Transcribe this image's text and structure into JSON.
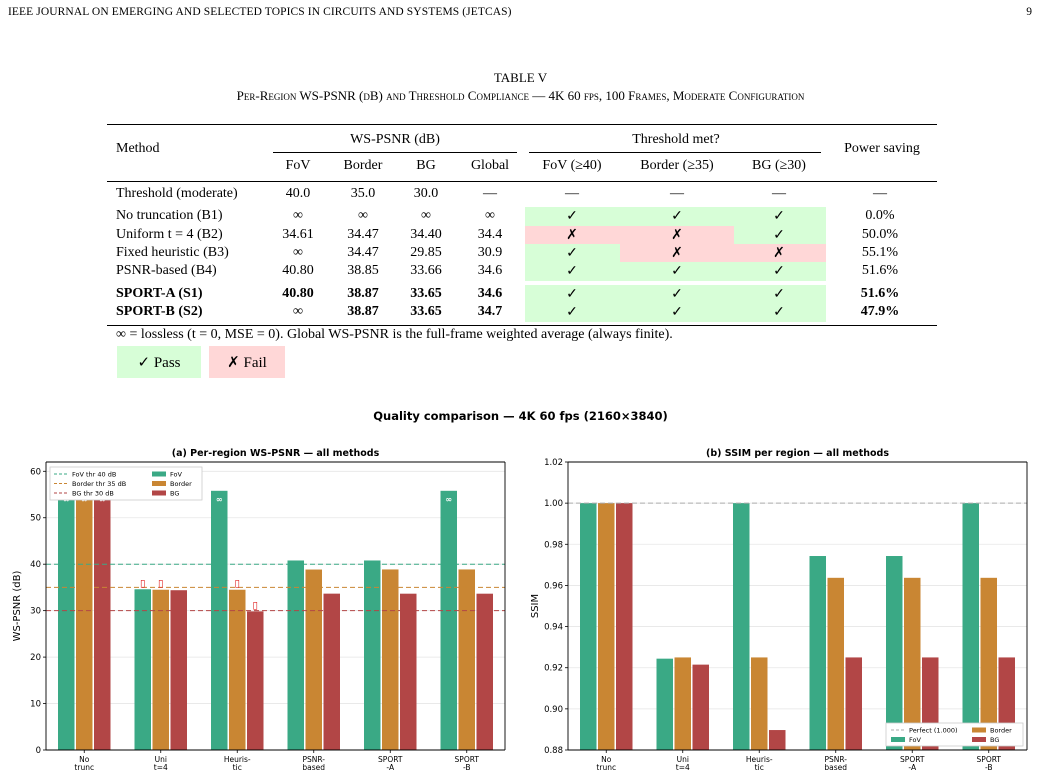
{
  "page_header": {
    "journal": "IEEE JOURNAL ON EMERGING AND SELECTED TOPICS IN CIRCUITS AND SYSTEMS (JETCAS)",
    "page_number": "9"
  },
  "table": {
    "number": "TABLE V",
    "caption": "Per-Region WS-PSNR (dB) and Threshold Compliance — 4K 60 fps, 100 Frames, Moderate Configuration",
    "group_headers": {
      "method": "Method",
      "wspsnr": "WS-PSNR (dB)",
      "threshold": "Threshold met?",
      "power": "Power saving"
    },
    "sub_headers": [
      "FoV",
      "Border",
      "BG",
      "Global",
      "FoV (≥40)",
      "Border (≥35)",
      "BG (≥30)"
    ],
    "rows": [
      {
        "method": "Threshold (moderate)",
        "fov": "40.0",
        "border": "35.0",
        "bg": "30.0",
        "global": "—",
        "t_fov": "—",
        "t_border": "—",
        "t_bg": "—",
        "power": "—"
      },
      {
        "method": "No truncation (B1)",
        "fov": "∞",
        "border": "∞",
        "bg": "∞",
        "global": "∞",
        "t_fov": "✓",
        "t_border": "✓",
        "t_bg": "✓",
        "power": "0.0%"
      },
      {
        "method": "Uniform t = 4 (B2)",
        "fov": "34.61",
        "border": "34.47",
        "bg": "34.40",
        "global": "34.4",
        "t_fov": "✗",
        "t_border": "✗",
        "t_bg": "✓",
        "power": "50.0%"
      },
      {
        "method": "Fixed heuristic (B3)",
        "fov": "∞",
        "border": "34.47",
        "bg": "29.85",
        "global": "30.9",
        "t_fov": "✓",
        "t_border": "✗",
        "t_bg": "✗",
        "power": "55.1%"
      },
      {
        "method": "PSNR-based (B4)",
        "fov": "40.80",
        "border": "38.85",
        "bg": "33.66",
        "global": "34.6",
        "t_fov": "✓",
        "t_border": "✓",
        "t_bg": "✓",
        "power": "51.6%"
      },
      {
        "method": "SPORT-A (S1)",
        "fov": "40.80",
        "border": "38.87",
        "bg": "33.65",
        "global": "34.6",
        "t_fov": "✓",
        "t_border": "✓",
        "t_bg": "✓",
        "power": "51.6%"
      },
      {
        "method": "SPORT-B (S2)",
        "fov": "∞",
        "border": "38.87",
        "bg": "33.65",
        "global": "34.7",
        "t_fov": "✓",
        "t_border": "✓",
        "t_bg": "✓",
        "power": "47.9%"
      }
    ],
    "footnote": "∞ = lossless (t = 0, MSE = 0). Global WS-PSNR is the full-frame weighted average (always finite).",
    "legend_pass": "✓ Pass",
    "legend_fail": "✗ Fail",
    "colors": {
      "pass_bg": "#d7fed7",
      "fail_bg": "#ffd7d7"
    }
  },
  "figure": {
    "suptitle": "Quality comparison — 4K 60 fps (2160×3840)",
    "colors": {
      "fov": "#3aa985",
      "border": "#c98633",
      "bg": "#b24646"
    }
  },
  "chart_data": [
    {
      "type": "bar",
      "title": "(a) Per-region WS-PSNR — all methods",
      "xlabel": "",
      "ylabel": "WS-PSNR (dB)",
      "ylim": [
        0,
        62
      ],
      "yticks": [
        0,
        10,
        20,
        30,
        40,
        50,
        60
      ],
      "categories": [
        "No\ntrunc",
        "Uni\nt=4",
        "Heuris-\ntic",
        "PSNR-\nbased",
        "SPORT\n-A",
        "SPORT\n-B"
      ],
      "series": [
        {
          "name": "FoV",
          "values": [
            55.8,
            34.6,
            55.8,
            40.8,
            40.8,
            55.8
          ],
          "labels": [
            "∞",
            "",
            "∞",
            "",
            "",
            "∞"
          ]
        },
        {
          "name": "Border",
          "values": [
            55.8,
            34.5,
            34.5,
            38.85,
            38.87,
            38.87
          ],
          "labels": [
            "∞",
            "",
            "",
            "",
            "",
            ""
          ]
        },
        {
          "name": "BG",
          "values": [
            55.8,
            34.4,
            29.85,
            33.66,
            33.65,
            33.65
          ],
          "labels": [
            "∞",
            "",
            "",
            "",
            "",
            ""
          ]
        }
      ],
      "thresholds": [
        {
          "name": "FoV thr 40 dB",
          "value": 40,
          "color": "#3aa985"
        },
        {
          "name": "Border thr 35 dB",
          "value": 35,
          "color": "#c98633"
        },
        {
          "name": "BG thr 30 dB",
          "value": 30,
          "color": "#b24646"
        }
      ],
      "fail_markers": [
        {
          "category": 1,
          "series": 0,
          "text": "▯"
        },
        {
          "category": 1,
          "series": 1,
          "text": "▯"
        },
        {
          "category": 2,
          "series": 1,
          "text": "▯"
        },
        {
          "category": 2,
          "series": 2,
          "text": "▯"
        }
      ],
      "legend": "top-left",
      "grid": true
    },
    {
      "type": "bar",
      "title": "(b) SSIM per region — all methods",
      "xlabel": "",
      "ylabel": "SSIM",
      "ylim": [
        0.88,
        1.02
      ],
      "yticks": [
        0.88,
        0.9,
        0.92,
        0.94,
        0.96,
        0.98,
        1.0,
        1.02
      ],
      "categories": [
        "No\ntrunc",
        "Uni\nt=4",
        "Heuris-\ntic",
        "PSNR-\nbased",
        "SPORT\n-A",
        "SPORT\n-B"
      ],
      "series": [
        {
          "name": "FoV",
          "values": [
            1.0,
            0.9244,
            1.0,
            0.9743,
            0.9743,
            1.0
          ]
        },
        {
          "name": "Border",
          "values": [
            1.0,
            0.925,
            0.925,
            0.9637,
            0.9637,
            0.9637
          ]
        },
        {
          "name": "BG",
          "values": [
            1.0,
            0.9215,
            0.8897,
            0.925,
            0.925,
            0.925
          ]
        }
      ],
      "reference_line": {
        "name": "Perfect (1.000)",
        "value": 1.0
      },
      "legend": "bottom-right",
      "grid": true
    }
  ]
}
